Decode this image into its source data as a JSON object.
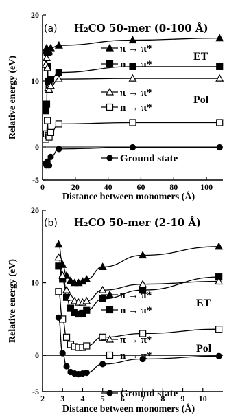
{
  "chart_data": [
    {
      "type": "line",
      "panel_tag": "(a)",
      "title": "H₂CO 50-mer (0-100 Å)",
      "xlabel": "Distance between monomers (Å)",
      "ylabel": "Relative energy (eV)",
      "xlim": [
        0,
        110
      ],
      "ylim": [
        -5,
        20
      ],
      "xticks": [
        0,
        20,
        40,
        60,
        80,
        100
      ],
      "yticks": [
        -5,
        0,
        10,
        20
      ],
      "series": [
        {
          "name": "π → π*",
          "group": "ET",
          "marker": "triangle",
          "filled": true,
          "x": [
            2,
            2.5,
            3,
            3.5,
            4,
            5,
            10,
            55,
            108
          ],
          "y": [
            14.5,
            15,
            14.3,
            14.4,
            14.5,
            15.0,
            15.4,
            16.2,
            16.5
          ]
        },
        {
          "name": "n → π*",
          "group": "ET",
          "marker": "square",
          "filled": true,
          "x": [
            2,
            2.5,
            3,
            3.5,
            4,
            5,
            10,
            55,
            108
          ],
          "y": [
            5.5,
            6.5,
            12.2,
            10,
            9.5,
            10.3,
            11.3,
            12.2,
            12.2
          ]
        },
        {
          "name": "π → π*",
          "group": "Pol",
          "marker": "triangle",
          "filled": false,
          "x": [
            2,
            2.5,
            3,
            3.5,
            4,
            5,
            10,
            55,
            108
          ],
          "y": [
            12.5,
            13.5,
            12,
            9,
            8.7,
            9.3,
            10.3,
            10.4,
            10.4
          ]
        },
        {
          "name": "n → π*",
          "group": "Pol",
          "marker": "square",
          "filled": false,
          "x": [
            2,
            2.5,
            3,
            3.5,
            4,
            5,
            10,
            55,
            108
          ],
          "y": [
            1.2,
            2,
            4,
            1.8,
            1.5,
            2.2,
            3.5,
            3.7,
            3.7
          ]
        },
        {
          "name": "Ground state",
          "marker": "circle",
          "filled": true,
          "x": [
            2,
            2.5,
            3,
            3.5,
            4,
            5,
            10,
            55,
            108
          ],
          "y": [
            -2.5,
            -2.8,
            -2.2,
            -2.7,
            -2.8,
            -1.5,
            -0.3,
            -0.05,
            -0.05
          ]
        }
      ]
    },
    {
      "type": "line",
      "panel_tag": "(b)",
      "title": "H₂CO 50-mer (2-10 Å)",
      "xlabel": "Distance between monomers (Å)",
      "ylabel": "Relative energy (eV)",
      "xlim": [
        2,
        11
      ],
      "ylim": [
        -5,
        20
      ],
      "xticks": [
        2,
        3,
        4,
        5,
        6,
        7,
        8,
        9,
        10
      ],
      "yticks": [
        -5,
        0,
        10,
        20
      ],
      "series": [
        {
          "name": "π → π*",
          "group": "ET",
          "marker": "triangle",
          "filled": true,
          "x": [
            2.8,
            3.0,
            3.2,
            3.4,
            3.6,
            3.8,
            4.0,
            4.2,
            5.0,
            7.0,
            10.8
          ],
          "y": [
            15.3,
            12.5,
            11.0,
            10.3,
            10.0,
            10.0,
            10.2,
            10.5,
            12.2,
            13.8,
            15.0
          ]
        },
        {
          "name": "n → π*",
          "group": "ET",
          "marker": "square",
          "filled": true,
          "x": [
            2.8,
            3.0,
            3.2,
            3.4,
            3.6,
            3.8,
            4.0,
            4.2,
            5.0,
            7.0,
            10.8
          ],
          "y": [
            12.3,
            10.5,
            8.0,
            6.5,
            5.9,
            5.7,
            5.8,
            6.2,
            7.8,
            9.0,
            10.8
          ]
        },
        {
          "name": "π → π*",
          "group": "Pol",
          "marker": "triangle",
          "filled": false,
          "x": [
            2.8,
            3.0,
            3.2,
            3.4,
            3.6,
            3.8,
            4.0,
            4.2,
            5.0,
            7.0,
            10.8
          ],
          "y": [
            13.5,
            11.0,
            9.0,
            8.0,
            7.5,
            7.3,
            7.3,
            7.5,
            9.0,
            9.8,
            10.2
          ]
        },
        {
          "name": "n → π*",
          "group": "Pol",
          "marker": "square",
          "filled": false,
          "x": [
            2.8,
            3.0,
            3.2,
            3.4,
            3.6,
            3.8,
            4.0,
            4.2,
            5.0,
            7.0,
            10.8
          ],
          "y": [
            8.8,
            5.0,
            2.5,
            1.5,
            1.2,
            1.1,
            1.1,
            1.3,
            2.5,
            3.0,
            3.6
          ]
        },
        {
          "name": "Ground state",
          "marker": "circle",
          "filled": true,
          "x": [
            2.8,
            3.0,
            3.2,
            3.4,
            3.6,
            3.8,
            4.0,
            4.2,
            5.0,
            7.0,
            10.8
          ],
          "y": [
            5.2,
            0.3,
            -1.5,
            -2.3,
            -2.5,
            -2.6,
            -2.5,
            -2.4,
            -1.2,
            -0.5,
            -0.1
          ]
        }
      ]
    }
  ]
}
